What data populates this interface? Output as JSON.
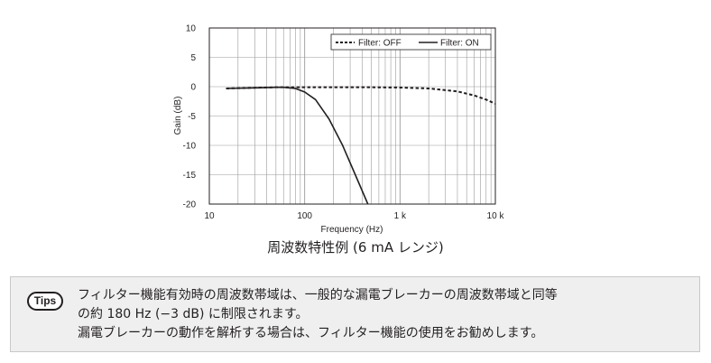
{
  "chart_data": {
    "type": "line",
    "xscale": "log",
    "xlim": [
      10,
      10000
    ],
    "ylim": [
      -20,
      10
    ],
    "xlabel": "Frequency (Hz)",
    "ylabel": "Gain (dB)",
    "x_ticks": [
      "10",
      "100",
      "1 k",
      "10 k"
    ],
    "y_ticks": [
      "10",
      "5",
      "0",
      "-5",
      "-10",
      "-15",
      "-20"
    ],
    "y_tick_values": [
      10,
      5,
      0,
      -5,
      -10,
      -15,
      -20
    ],
    "grid": true,
    "legend_position": "top-right",
    "series": [
      {
        "name": "Filter: OFF",
        "style": "dashed",
        "x": [
          15,
          50,
          100,
          500,
          1000,
          2000,
          4000,
          6000,
          8000,
          10000
        ],
        "y": [
          -0.3,
          -0.1,
          -0.1,
          -0.1,
          -0.15,
          -0.3,
          -0.8,
          -1.5,
          -2.2,
          -2.9
        ]
      },
      {
        "name": "Filter: ON",
        "style": "solid",
        "x": [
          15,
          30,
          50,
          60,
          80,
          100,
          130,
          180,
          250,
          350,
          460
        ],
        "y": [
          -0.3,
          -0.2,
          -0.1,
          -0.1,
          -0.3,
          -0.9,
          -2.2,
          -5.5,
          -10,
          -15.5,
          -20
        ]
      }
    ]
  },
  "caption": "周波数特性例 (6 mA レンジ)",
  "tips": {
    "badge": "Tips",
    "lines": [
      "フィルター機能有効時の周波数帯域は、一般的な漏電ブレーカーの周波数帯域と同等",
      "の約 180 Hz (−3 dB) に制限されます。",
      "漏電ブレーカーの動作を解析する場合は、フィルター機能の使用をお勧めします。"
    ]
  }
}
